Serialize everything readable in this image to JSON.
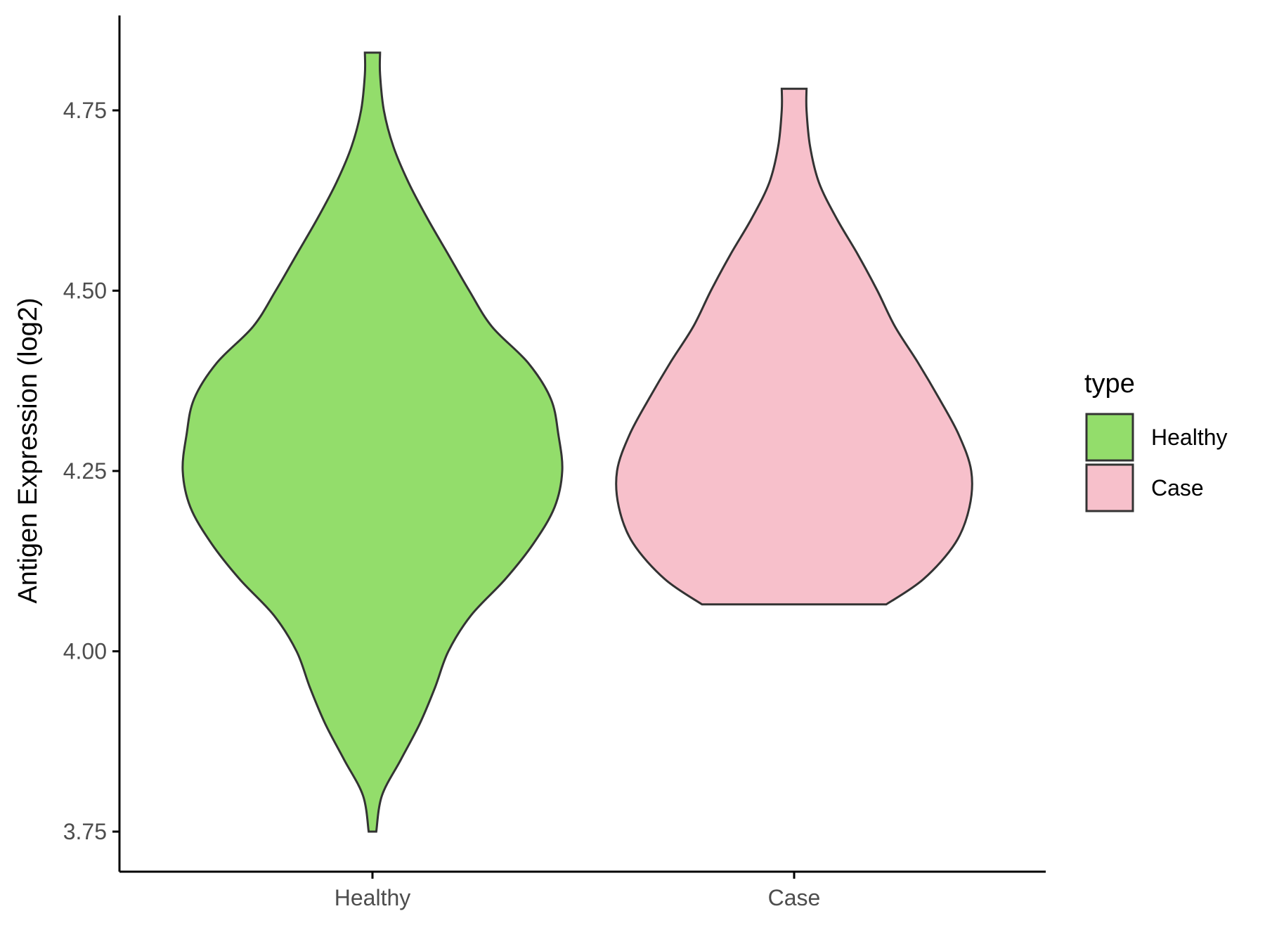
{
  "chart_data": {
    "type": "violin",
    "title": "",
    "xlabel": "",
    "ylabel": "Antigen Expression (log2)",
    "ylim": [
      3.7,
      4.88
    ],
    "yticks": [
      3.75,
      4.0,
      4.25,
      4.5,
      4.75
    ],
    "ytick_labels": [
      "3.75",
      "4.00",
      "4.25",
      "4.50",
      "4.75"
    ],
    "categories": [
      "Healthy",
      "Case"
    ],
    "legend": {
      "title": "type",
      "placement": "right",
      "entries": [
        {
          "label": "Healthy",
          "color": "#93DD6B"
        },
        {
          "label": "Case",
          "color": "#F7C0CB"
        }
      ]
    },
    "series": [
      {
        "category": "Healthy",
        "color": "#93DD6B",
        "min": 3.75,
        "max": 4.83,
        "density_profile": [
          {
            "y": 3.75,
            "w": 0.02
          },
          {
            "y": 3.8,
            "w": 0.05
          },
          {
            "y": 3.85,
            "w": 0.15
          },
          {
            "y": 3.9,
            "w": 0.25
          },
          {
            "y": 3.95,
            "w": 0.33
          },
          {
            "y": 4.0,
            "w": 0.4
          },
          {
            "y": 4.05,
            "w": 0.52
          },
          {
            "y": 4.1,
            "w": 0.7
          },
          {
            "y": 4.15,
            "w": 0.85
          },
          {
            "y": 4.2,
            "w": 0.96
          },
          {
            "y": 4.25,
            "w": 1.0
          },
          {
            "y": 4.3,
            "w": 0.98
          },
          {
            "y": 4.35,
            "w": 0.94
          },
          {
            "y": 4.4,
            "w": 0.82
          },
          {
            "y": 4.45,
            "w": 0.63
          },
          {
            "y": 4.5,
            "w": 0.51
          },
          {
            "y": 4.55,
            "w": 0.4
          },
          {
            "y": 4.6,
            "w": 0.29
          },
          {
            "y": 4.65,
            "w": 0.19
          },
          {
            "y": 4.7,
            "w": 0.11
          },
          {
            "y": 4.75,
            "w": 0.06
          },
          {
            "y": 4.8,
            "w": 0.04
          },
          {
            "y": 4.83,
            "w": 0.04
          }
        ]
      },
      {
        "category": "Case",
        "color": "#F7C0CB",
        "min": 4.065,
        "max": 4.78,
        "density_profile": [
          {
            "y": 4.065,
            "w": 0.52
          },
          {
            "y": 4.1,
            "w": 0.73
          },
          {
            "y": 4.15,
            "w": 0.91
          },
          {
            "y": 4.2,
            "w": 0.99
          },
          {
            "y": 4.25,
            "w": 1.0
          },
          {
            "y": 4.3,
            "w": 0.93
          },
          {
            "y": 4.35,
            "w": 0.82
          },
          {
            "y": 4.4,
            "w": 0.7
          },
          {
            "y": 4.45,
            "w": 0.57
          },
          {
            "y": 4.5,
            "w": 0.47
          },
          {
            "y": 4.55,
            "w": 0.36
          },
          {
            "y": 4.6,
            "w": 0.24
          },
          {
            "y": 4.65,
            "w": 0.14
          },
          {
            "y": 4.7,
            "w": 0.09
          },
          {
            "y": 4.75,
            "w": 0.07
          },
          {
            "y": 4.78,
            "w": 0.07
          }
        ]
      }
    ]
  }
}
